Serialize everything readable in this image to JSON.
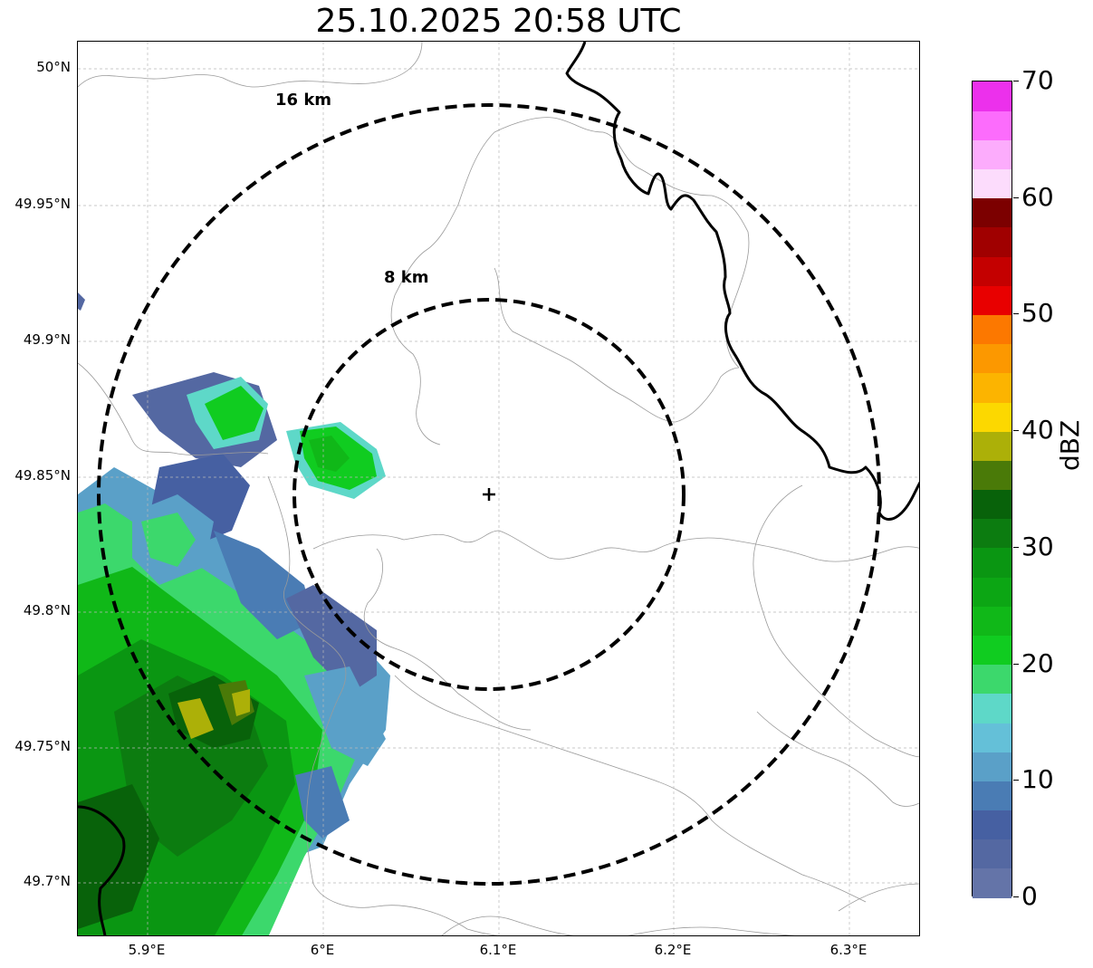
{
  "title": "25.10.2025 20:58 UTC",
  "map": {
    "radar_site_marker": "plus-icon",
    "range_rings": [
      {
        "label": "8 km",
        "radius_km": 8
      },
      {
        "label": "16 km",
        "radius_km": 16
      }
    ],
    "lat_labels": [
      "50°N",
      "49.95°N",
      "49.9°N",
      "49.85°N",
      "49.8°N",
      "49.75°N",
      "49.7°N"
    ],
    "lon_labels": [
      "5.9°E",
      "6°E",
      "6.1°E",
      "6.2°E",
      "6.3°E"
    ],
    "extent": {
      "lon_min": 5.86,
      "lon_max": 6.34,
      "lat_min": 49.68,
      "lat_max": 50.01
    },
    "ring_line_color": "#000000",
    "grid": true
  },
  "colorbar": {
    "unit": "dBZ",
    "min": 0,
    "max": 70,
    "tick_labels": [
      "0",
      "10",
      "20",
      "30",
      "40",
      "50",
      "60",
      "70"
    ],
    "colors": [
      "#6474a8",
      "#5468a2",
      "#4660a2",
      "#4a7cb4",
      "#5aa0c8",
      "#64c0d8",
      "#5ed8c8",
      "#3cd86c",
      "#10cc20",
      "#10b818",
      "#0ca614",
      "#0a9612",
      "#0c7c10",
      "#08620a",
      "#4a7a08",
      "#acb008",
      "#fcd800",
      "#fcb400",
      "#fc9800",
      "#fc7800",
      "#e80000",
      "#c40000",
      "#a00000",
      "#7c0000",
      "#fcdcfc",
      "#fcacfc",
      "#fc6cfc",
      "#ec30ec"
    ]
  }
}
